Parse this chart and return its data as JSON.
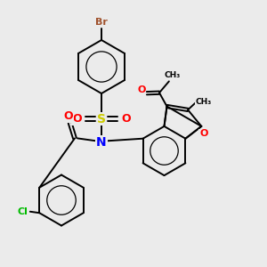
{
  "background_color": "#ebebeb",
  "atom_colors": {
    "Br": "#a0522d",
    "O": "#ff0000",
    "S": "#cccc00",
    "N": "#0000ff",
    "Cl": "#00bb00",
    "C": "#000000"
  },
  "bond_color": "#000000",
  "bond_width": 1.4,
  "aromatic_lw": 0.9,
  "font_size_atom": 8,
  "font_size_small": 7
}
